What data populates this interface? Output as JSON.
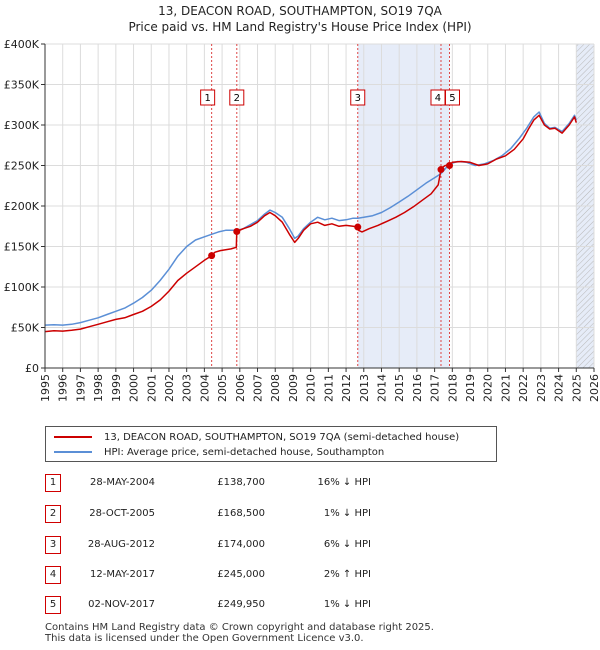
{
  "chart_data": {
    "type": "line",
    "title": "13, DEACON ROAD, SOUTHAMPTON, SO19 7QA",
    "subtitle": "Price paid vs. HM Land Registry's House Price Index (HPI)",
    "xlim": [
      1995,
      2026
    ],
    "ylim": [
      0,
      400000
    ],
    "y_ticks": [
      0,
      50000,
      100000,
      150000,
      200000,
      250000,
      300000,
      350000,
      400000
    ],
    "y_tick_labels": [
      "£0",
      "£50K",
      "£100K",
      "£150K",
      "£200K",
      "£250K",
      "£300K",
      "£350K",
      "£400K"
    ],
    "x_ticks": [
      1995,
      1996,
      1997,
      1998,
      1999,
      2000,
      2001,
      2002,
      2003,
      2004,
      2005,
      2006,
      2007,
      2008,
      2009,
      2010,
      2011,
      2012,
      2013,
      2014,
      2015,
      2016,
      2017,
      2018,
      2019,
      2020,
      2021,
      2022,
      2023,
      2024,
      2025,
      2026
    ],
    "x_tick_labels": [
      "1995",
      "1996",
      "1997",
      "1998",
      "1999",
      "2000",
      "2001",
      "2002",
      "2003",
      "2004",
      "2005",
      "2006",
      "2007",
      "2008",
      "2009",
      "2010",
      "2011",
      "2012",
      "2013",
      "2014",
      "2015",
      "2016",
      "2017",
      "2018",
      "2019",
      "2020",
      "2021",
      "2022",
      "2023",
      "2024",
      "2025",
      "2026"
    ],
    "grid": true,
    "shaded_ranges": [
      [
        2012.66,
        2017.84
      ],
      [
        2025.0,
        2026.0
      ]
    ],
    "shade_color": "#e6ecf8",
    "future_hatch_from": 2025.0,
    "series": [
      {
        "name": "13, DEACON ROAD, SOUTHAMPTON, SO19 7QA (semi-detached house)",
        "color": "#cc0000",
        "x": [
          1995.0,
          1995.5,
          1996.0,
          1996.5,
          1997.0,
          1997.5,
          1998.0,
          1998.5,
          1999.0,
          1999.5,
          2000.0,
          2000.5,
          2001.0,
          2001.5,
          2002.0,
          2002.5,
          2003.0,
          2003.5,
          2004.0,
          2004.41,
          2004.45,
          2004.6,
          2004.9,
          2005.2,
          2005.5,
          2005.8,
          2005.83,
          2006.2,
          2006.6,
          2007.0,
          2007.4,
          2007.7,
          2008.0,
          2008.4,
          2008.8,
          2009.1,
          2009.3,
          2009.6,
          2010.0,
          2010.4,
          2010.8,
          2011.2,
          2011.6,
          2012.0,
          2012.4,
          2012.66,
          2012.7,
          2012.9,
          2013.3,
          2013.8,
          2014.3,
          2014.8,
          2015.3,
          2015.8,
          2016.3,
          2016.8,
          2017.2,
          2017.36,
          2017.4,
          2017.6,
          2017.84,
          2018.0,
          2018.5,
          2019.0,
          2019.5,
          2020.0,
          2020.5,
          2021.0,
          2021.5,
          2022.0,
          2022.3,
          2022.6,
          2022.9,
          2023.2,
          2023.5,
          2023.8,
          2024.2,
          2024.6,
          2024.9,
          2025.0
        ],
        "y": [
          45000,
          46000,
          45500,
          46500,
          48000,
          51000,
          54000,
          57000,
          60000,
          62000,
          66000,
          70000,
          76000,
          84000,
          95000,
          108000,
          117000,
          125000,
          133000,
          138700,
          140000,
          143000,
          145000,
          146000,
          147000,
          149000,
          168500,
          172000,
          175000,
          180000,
          188000,
          192000,
          188000,
          180000,
          165000,
          155000,
          160000,
          170000,
          178000,
          180000,
          176000,
          178000,
          175000,
          176000,
          175000,
          174000,
          170000,
          168000,
          172000,
          176000,
          181000,
          186000,
          192000,
          199000,
          207000,
          215000,
          226000,
          245000,
          247000,
          250000,
          249950,
          254000,
          255000,
          254000,
          250000,
          252000,
          258000,
          262000,
          270000,
          283000,
          295000,
          306000,
          312000,
          300000,
          295000,
          296000,
          290000,
          300000,
          310000,
          303000
        ],
        "markers": [
          [
            2004.41,
            138700
          ],
          [
            2005.83,
            168500
          ],
          [
            2012.66,
            174000
          ],
          [
            2017.36,
            245000
          ],
          [
            2017.84,
            249950
          ]
        ]
      },
      {
        "name": "HPI: Average price, semi-detached house, Southampton",
        "color": "#5b8fd6",
        "x": [
          1995.0,
          1995.5,
          1996.0,
          1996.5,
          1997.0,
          1997.5,
          1998.0,
          1998.5,
          1999.0,
          1999.5,
          2000.0,
          2000.5,
          2001.0,
          2001.5,
          2002.0,
          2002.5,
          2003.0,
          2003.5,
          2004.0,
          2004.41,
          2004.8,
          2005.2,
          2005.6,
          2005.83,
          2006.2,
          2006.6,
          2007.0,
          2007.4,
          2007.7,
          2008.0,
          2008.4,
          2008.8,
          2009.1,
          2009.3,
          2009.6,
          2010.0,
          2010.4,
          2010.8,
          2011.2,
          2011.6,
          2012.0,
          2012.4,
          2012.66,
          2013.0,
          2013.5,
          2014.0,
          2014.5,
          2015.0,
          2015.5,
          2016.0,
          2016.5,
          2017.0,
          2017.36,
          2017.84,
          2018.3,
          2018.8,
          2019.3,
          2019.8,
          2020.3,
          2020.8,
          2021.3,
          2021.8,
          2022.2,
          2022.6,
          2022.9,
          2023.2,
          2023.5,
          2023.8,
          2024.2,
          2024.6,
          2024.9,
          2025.0
        ],
        "y": [
          53000,
          53500,
          53000,
          54000,
          56000,
          59000,
          62000,
          66000,
          70000,
          74000,
          80000,
          87000,
          96000,
          108000,
          122000,
          138000,
          150000,
          158000,
          162000,
          165000,
          168000,
          170000,
          170000,
          170000,
          172000,
          177000,
          182000,
          190000,
          195000,
          192000,
          186000,
          172000,
          160000,
          163000,
          172000,
          180000,
          186000,
          183000,
          185000,
          182000,
          183000,
          185000,
          185000,
          186000,
          188000,
          192000,
          198000,
          205000,
          212000,
          220000,
          228000,
          235000,
          240000,
          252000,
          255000,
          254000,
          250000,
          252000,
          256000,
          262000,
          271000,
          284000,
          296000,
          310000,
          316000,
          302000,
          296000,
          297000,
          292000,
          302000,
          312000,
          306000
        ]
      }
    ],
    "annotations": [
      {
        "label": "1",
        "x": 2004.41
      },
      {
        "label": "2",
        "x": 2005.83
      },
      {
        "label": "3",
        "x": 2012.66
      },
      {
        "label": "4",
        "x": 2017.36
      },
      {
        "label": "5",
        "x": 2017.84
      }
    ]
  },
  "legend": {
    "property_label": "13, DEACON ROAD, SOUTHAMPTON, SO19 7QA (semi-detached house)",
    "hpi_label": "HPI: Average price, semi-detached house, Southampton",
    "property_color": "#cc0000",
    "hpi_color": "#5b8fd6"
  },
  "transactions": [
    {
      "num": "1",
      "date": "28-MAY-2004",
      "price": "£138,700",
      "hpi": "16% ↓ HPI"
    },
    {
      "num": "2",
      "date": "28-OCT-2005",
      "price": "£168,500",
      "hpi": "1% ↓ HPI"
    },
    {
      "num": "3",
      "date": "28-AUG-2012",
      "price": "£174,000",
      "hpi": "6% ↓ HPI"
    },
    {
      "num": "4",
      "date": "12-MAY-2017",
      "price": "£245,000",
      "hpi": "2% ↑ HPI"
    },
    {
      "num": "5",
      "date": "02-NOV-2017",
      "price": "£249,950",
      "hpi": "1% ↓ HPI"
    }
  ],
  "footer": {
    "line1": "Contains HM Land Registry data © Crown copyright and database right 2025.",
    "line2": "This data is licensed under the Open Government Licence v3.0."
  }
}
